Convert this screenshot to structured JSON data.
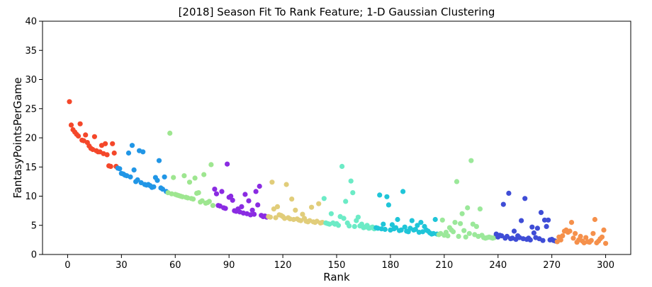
{
  "chart_data": {
    "type": "scatter",
    "title": "[2018] Season Fit To Rank Feature; 1-D Gaussian Clustering",
    "xlabel": "Rank",
    "ylabel": "FantasyPointsPerGame",
    "xlim": [
      -14,
      314
    ],
    "ylim": [
      0,
      40
    ],
    "xticks": [
      "0",
      "30",
      "60",
      "90",
      "120",
      "150",
      "180",
      "210",
      "240",
      "270",
      "300"
    ],
    "yticks": [
      "0",
      "5",
      "10",
      "15",
      "20",
      "25",
      "30",
      "35",
      "40"
    ],
    "grid": false,
    "legend": "none",
    "series": [
      {
        "color": "#f4472a",
        "points": [
          [
            1,
            26.2
          ],
          [
            2,
            22.2
          ],
          [
            3,
            21.4
          ],
          [
            4,
            21.0
          ],
          [
            5,
            20.6
          ],
          [
            6,
            20.3
          ],
          [
            7,
            22.4
          ],
          [
            8,
            19.6
          ],
          [
            9,
            19.5
          ],
          [
            10,
            20.5
          ],
          [
            11,
            19.2
          ],
          [
            12,
            18.6
          ],
          [
            13,
            18.2
          ],
          [
            14,
            18.0
          ],
          [
            15,
            20.2
          ],
          [
            16,
            17.8
          ],
          [
            17,
            17.6
          ],
          [
            18,
            17.6
          ],
          [
            19,
            18.7
          ],
          [
            20,
            17.3
          ],
          [
            21,
            19.0
          ],
          [
            22,
            17.1
          ],
          [
            23,
            15.2
          ],
          [
            24,
            15.1
          ],
          [
            25,
            19.0
          ],
          [
            26,
            17.4
          ],
          [
            27,
            15.1
          ]
        ]
      },
      {
        "color": "#2196e6",
        "points": [
          [
            28,
            14.8
          ],
          [
            29,
            14.7
          ],
          [
            30,
            13.9
          ],
          [
            31,
            13.8
          ],
          [
            32,
            13.6
          ],
          [
            33,
            13.5
          ],
          [
            34,
            17.4
          ],
          [
            35,
            13.3
          ],
          [
            36,
            18.7
          ],
          [
            37,
            14.5
          ],
          [
            38,
            12.5
          ],
          [
            39,
            12.8
          ],
          [
            40,
            17.8
          ],
          [
            41,
            12.3
          ],
          [
            42,
            17.6
          ],
          [
            43,
            12.0
          ],
          [
            44,
            11.9
          ],
          [
            45,
            12.0
          ],
          [
            46,
            11.8
          ],
          [
            47,
            11.5
          ],
          [
            48,
            11.6
          ],
          [
            49,
            13.2
          ],
          [
            50,
            12.7
          ],
          [
            51,
            16.1
          ],
          [
            52,
            11.4
          ],
          [
            53,
            11.2
          ],
          [
            54,
            13.3
          ],
          [
            55,
            10.8
          ]
        ]
      },
      {
        "color": "#9ee690",
        "points": [
          [
            56,
            10.6
          ],
          [
            57,
            20.8
          ],
          [
            58,
            10.4
          ],
          [
            59,
            13.2
          ],
          [
            60,
            10.3
          ],
          [
            61,
            10.2
          ],
          [
            62,
            10.1
          ],
          [
            63,
            10.0
          ],
          [
            64,
            9.9
          ],
          [
            65,
            13.5
          ],
          [
            66,
            9.8
          ],
          [
            67,
            9.7
          ],
          [
            68,
            12.4
          ],
          [
            69,
            9.6
          ],
          [
            70,
            9.5
          ],
          [
            71,
            13.1
          ],
          [
            72,
            10.5
          ],
          [
            73,
            10.6
          ],
          [
            74,
            9.0
          ],
          [
            75,
            9.2
          ],
          [
            76,
            13.7
          ],
          [
            77,
            8.8
          ],
          [
            78,
            8.9
          ],
          [
            79,
            9.1
          ],
          [
            80,
            15.4
          ],
          [
            81,
            8.4
          ]
        ]
      },
      {
        "color": "#8a2be2",
        "points": [
          [
            82,
            11.2
          ],
          [
            83,
            10.4
          ],
          [
            84,
            8.4
          ],
          [
            85,
            8.3
          ],
          [
            86,
            10.8
          ],
          [
            87,
            8.0
          ],
          [
            88,
            7.9
          ],
          [
            89,
            15.5
          ],
          [
            90,
            9.8
          ],
          [
            91,
            10.0
          ],
          [
            92,
            9.3
          ],
          [
            93,
            7.5
          ],
          [
            94,
            7.4
          ],
          [
            95,
            7.8
          ],
          [
            96,
            7.3
          ],
          [
            97,
            8.2
          ],
          [
            98,
            7.1
          ],
          [
            99,
            10.3
          ],
          [
            100,
            7.0
          ],
          [
            101,
            9.2
          ],
          [
            102,
            6.8
          ],
          [
            103,
            7.6
          ],
          [
            104,
            6.9
          ],
          [
            105,
            10.8
          ],
          [
            106,
            8.5
          ],
          [
            107,
            11.7
          ],
          [
            108,
            6.7
          ],
          [
            109,
            6.5
          ],
          [
            110,
            6.6
          ],
          [
            111,
            6.4
          ]
        ]
      },
      {
        "color": "#e1cd7a",
        "points": [
          [
            112,
            6.5
          ],
          [
            113,
            6.4
          ],
          [
            114,
            12.4
          ],
          [
            115,
            7.8
          ],
          [
            116,
            6.3
          ],
          [
            117,
            8.2
          ],
          [
            118,
            6.8
          ],
          [
            119,
            6.7
          ],
          [
            120,
            6.5
          ],
          [
            121,
            6.2
          ],
          [
            122,
            12.0
          ],
          [
            123,
            6.3
          ],
          [
            124,
            6.1
          ],
          [
            125,
            9.5
          ],
          [
            126,
            6.0
          ],
          [
            127,
            7.6
          ],
          [
            128,
            6.1
          ],
          [
            129,
            5.9
          ],
          [
            130,
            5.8
          ],
          [
            131,
            6.9
          ],
          [
            132,
            6.2
          ],
          [
            133,
            5.7
          ],
          [
            134,
            5.6
          ],
          [
            135,
            5.8
          ],
          [
            136,
            8.1
          ],
          [
            137,
            5.6
          ],
          [
            138,
            5.5
          ],
          [
            139,
            5.7
          ],
          [
            140,
            8.7
          ],
          [
            141,
            5.4
          ],
          [
            142,
            5.5
          ]
        ]
      },
      {
        "color": "#6cebc6",
        "points": [
          [
            143,
            9.6
          ],
          [
            144,
            5.4
          ],
          [
            145,
            5.3
          ],
          [
            146,
            5.2
          ],
          [
            147,
            7.0
          ],
          [
            148,
            5.4
          ],
          [
            149,
            5.2
          ],
          [
            150,
            5.3
          ],
          [
            151,
            5.0
          ],
          [
            152,
            6.5
          ],
          [
            153,
            15.1
          ],
          [
            154,
            6.2
          ],
          [
            155,
            9.1
          ],
          [
            156,
            5.4
          ],
          [
            157,
            4.9
          ],
          [
            158,
            12.6
          ],
          [
            159,
            10.6
          ],
          [
            160,
            4.8
          ],
          [
            161,
            5.8
          ],
          [
            162,
            6.4
          ],
          [
            163,
            4.9
          ],
          [
            164,
            5.2
          ],
          [
            165,
            4.6
          ],
          [
            166,
            4.7
          ],
          [
            167,
            5.0
          ],
          [
            168,
            4.5
          ],
          [
            169,
            4.6
          ],
          [
            170,
            4.7
          ],
          [
            171,
            4.4
          ]
        ]
      },
      {
        "color": "#1fc5d8",
        "points": [
          [
            172,
            4.6
          ],
          [
            173,
            4.5
          ],
          [
            174,
            10.2
          ],
          [
            175,
            4.4
          ],
          [
            176,
            5.2
          ],
          [
            177,
            4.3
          ],
          [
            178,
            9.9
          ],
          [
            179,
            8.5
          ],
          [
            180,
            4.2
          ],
          [
            181,
            5.1
          ],
          [
            182,
            4.4
          ],
          [
            183,
            4.6
          ],
          [
            184,
            6.0
          ],
          [
            185,
            4.1
          ],
          [
            186,
            4.2
          ],
          [
            187,
            10.8
          ],
          [
            188,
            4.7
          ],
          [
            189,
            4.0
          ],
          [
            190,
            3.9
          ],
          [
            191,
            4.5
          ],
          [
            192,
            5.8
          ],
          [
            193,
            4.2
          ],
          [
            194,
            4.3
          ],
          [
            195,
            5.0
          ],
          [
            196,
            3.8
          ],
          [
            197,
            5.5
          ],
          [
            198,
            3.9
          ],
          [
            199,
            4.8
          ],
          [
            200,
            4.2
          ],
          [
            201,
            4.0
          ],
          [
            202,
            3.7
          ],
          [
            203,
            3.5
          ],
          [
            204,
            3.6
          ],
          [
            205,
            6.0
          ],
          [
            206,
            3.5
          ]
        ]
      },
      {
        "color": "#9be89a",
        "points": [
          [
            207,
            3.4
          ],
          [
            208,
            3.6
          ],
          [
            209,
            5.9
          ],
          [
            210,
            3.3
          ],
          [
            211,
            3.8
          ],
          [
            212,
            3.2
          ],
          [
            213,
            4.6
          ],
          [
            214,
            4.2
          ],
          [
            215,
            3.9
          ],
          [
            216,
            5.5
          ],
          [
            217,
            12.5
          ],
          [
            218,
            3.1
          ],
          [
            219,
            5.3
          ],
          [
            220,
            7.0
          ],
          [
            221,
            4.1
          ],
          [
            222,
            3.0
          ],
          [
            223,
            8.0
          ],
          [
            224,
            3.6
          ],
          [
            225,
            16.1
          ],
          [
            226,
            5.2
          ],
          [
            227,
            3.4
          ],
          [
            228,
            4.8
          ],
          [
            229,
            3.1
          ],
          [
            230,
            7.8
          ],
          [
            231,
            3.3
          ],
          [
            232,
            2.9
          ],
          [
            233,
            2.8
          ],
          [
            234,
            2.9
          ],
          [
            235,
            3.0
          ],
          [
            236,
            2.9
          ],
          [
            237,
            2.8
          ],
          [
            238,
            2.9
          ]
        ]
      },
      {
        "color": "#3f4dd6",
        "points": [
          [
            239,
            3.5
          ],
          [
            240,
            3.0
          ],
          [
            241,
            3.3
          ],
          [
            242,
            3.2
          ],
          [
            243,
            8.6
          ],
          [
            244,
            2.8
          ],
          [
            245,
            3.1
          ],
          [
            246,
            10.5
          ],
          [
            247,
            2.7
          ],
          [
            248,
            2.8
          ],
          [
            249,
            4.0
          ],
          [
            250,
            2.6
          ],
          [
            251,
            3.2
          ],
          [
            252,
            2.9
          ],
          [
            253,
            5.8
          ],
          [
            254,
            2.7
          ],
          [
            255,
            9.6
          ],
          [
            256,
            2.6
          ],
          [
            257,
            2.8
          ],
          [
            258,
            2.5
          ],
          [
            259,
            4.7
          ],
          [
            260,
            3.7
          ],
          [
            261,
            2.9
          ],
          [
            262,
            4.5
          ],
          [
            263,
            2.7
          ],
          [
            264,
            7.2
          ],
          [
            265,
            2.4
          ],
          [
            266,
            5.9
          ],
          [
            267,
            4.8
          ],
          [
            268,
            5.9
          ],
          [
            269,
            2.5
          ],
          [
            270,
            2.6
          ],
          [
            271,
            2.4
          ],
          [
            272,
            2.3
          ]
        ]
      },
      {
        "color": "#f5904b",
        "points": [
          [
            273,
            2.2
          ],
          [
            274,
            3.0
          ],
          [
            275,
            2.5
          ],
          [
            276,
            3.2
          ],
          [
            277,
            4.0
          ],
          [
            278,
            4.2
          ],
          [
            279,
            3.8
          ],
          [
            280,
            4.0
          ],
          [
            281,
            5.5
          ],
          [
            282,
            2.8
          ],
          [
            283,
            3.6
          ],
          [
            284,
            2.1
          ],
          [
            285,
            2.5
          ],
          [
            286,
            3.1
          ],
          [
            287,
            2.3
          ],
          [
            288,
            2.0
          ],
          [
            289,
            2.9
          ],
          [
            290,
            2.2
          ],
          [
            291,
            2.1
          ],
          [
            292,
            2.4
          ],
          [
            293,
            3.6
          ],
          [
            294,
            6.0
          ],
          [
            295,
            2.0
          ],
          [
            296,
            2.3
          ],
          [
            297,
            2.7
          ],
          [
            298,
            3.0
          ],
          [
            299,
            4.2
          ],
          [
            300,
            1.9
          ]
        ]
      }
    ]
  }
}
